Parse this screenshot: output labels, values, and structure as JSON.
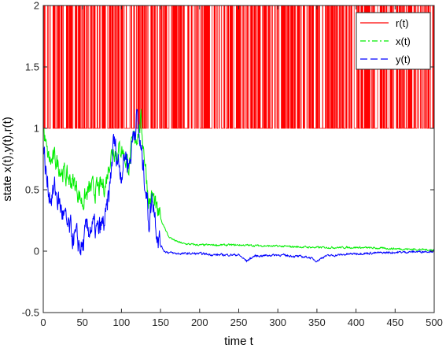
{
  "chart_data": {
    "type": "line",
    "xlabel": "time t",
    "ylabel": "state x(t),y(t),r(t)",
    "xlim": [
      0,
      500
    ],
    "ylim": [
      -0.5,
      2
    ],
    "xticks": [
      "0",
      "50",
      "100",
      "150",
      "200",
      "250",
      "300",
      "350",
      "400",
      "450",
      "500"
    ],
    "yticks": [
      "-0.5",
      "0",
      "0.5",
      "1",
      "1.5",
      "2"
    ],
    "grid": false,
    "legend_position": "top-right",
    "series": [
      {
        "name": "r(t)",
        "style": "solid",
        "color": "#ff0000",
        "kind": "switching",
        "levels": [
          1,
          2
        ]
      },
      {
        "name": "x(t)",
        "style": "dash-dot",
        "color": "#00ee00",
        "x": [
          0,
          5,
          10,
          15,
          20,
          25,
          30,
          40,
          50,
          55,
          60,
          70,
          80,
          85,
          90,
          95,
          100,
          105,
          110,
          115,
          120,
          125,
          130,
          135,
          140,
          145,
          150,
          155,
          160,
          170,
          180,
          200,
          220,
          250,
          300,
          350,
          400,
          450,
          500
        ],
        "y": [
          1.0,
          0.78,
          0.72,
          0.75,
          0.7,
          0.65,
          0.6,
          0.55,
          0.4,
          0.45,
          0.5,
          0.5,
          0.55,
          0.75,
          0.85,
          0.8,
          0.85,
          0.75,
          0.7,
          0.9,
          0.95,
          1.05,
          0.75,
          0.4,
          0.45,
          0.32,
          0.25,
          0.2,
          0.12,
          0.08,
          0.06,
          0.05,
          0.05,
          0.05,
          0.04,
          0.03,
          0.03,
          0.02,
          0.01
        ]
      },
      {
        "name": "y(t)",
        "style": "dashed",
        "color": "#0000ff",
        "x": [
          0,
          5,
          10,
          15,
          20,
          25,
          30,
          40,
          50,
          55,
          60,
          70,
          80,
          85,
          90,
          95,
          100,
          105,
          110,
          115,
          120,
          125,
          130,
          135,
          140,
          145,
          150,
          155,
          160,
          170,
          180,
          200,
          220,
          250,
          260,
          270,
          300,
          340,
          350,
          360,
          400,
          450,
          500
        ],
        "y": [
          0.85,
          0.55,
          0.45,
          0.5,
          0.4,
          0.3,
          0.2,
          0.1,
          0.02,
          0.15,
          0.2,
          0.15,
          0.25,
          0.5,
          0.9,
          0.75,
          0.65,
          0.8,
          0.7,
          0.95,
          1.1,
          0.8,
          0.6,
          0.25,
          0.45,
          0.2,
          0.05,
          0.0,
          -0.01,
          -0.02,
          -0.02,
          -0.02,
          -0.03,
          -0.03,
          -0.08,
          -0.04,
          -0.03,
          -0.05,
          -0.08,
          -0.04,
          -0.02,
          -0.01,
          0.0
        ]
      }
    ]
  }
}
